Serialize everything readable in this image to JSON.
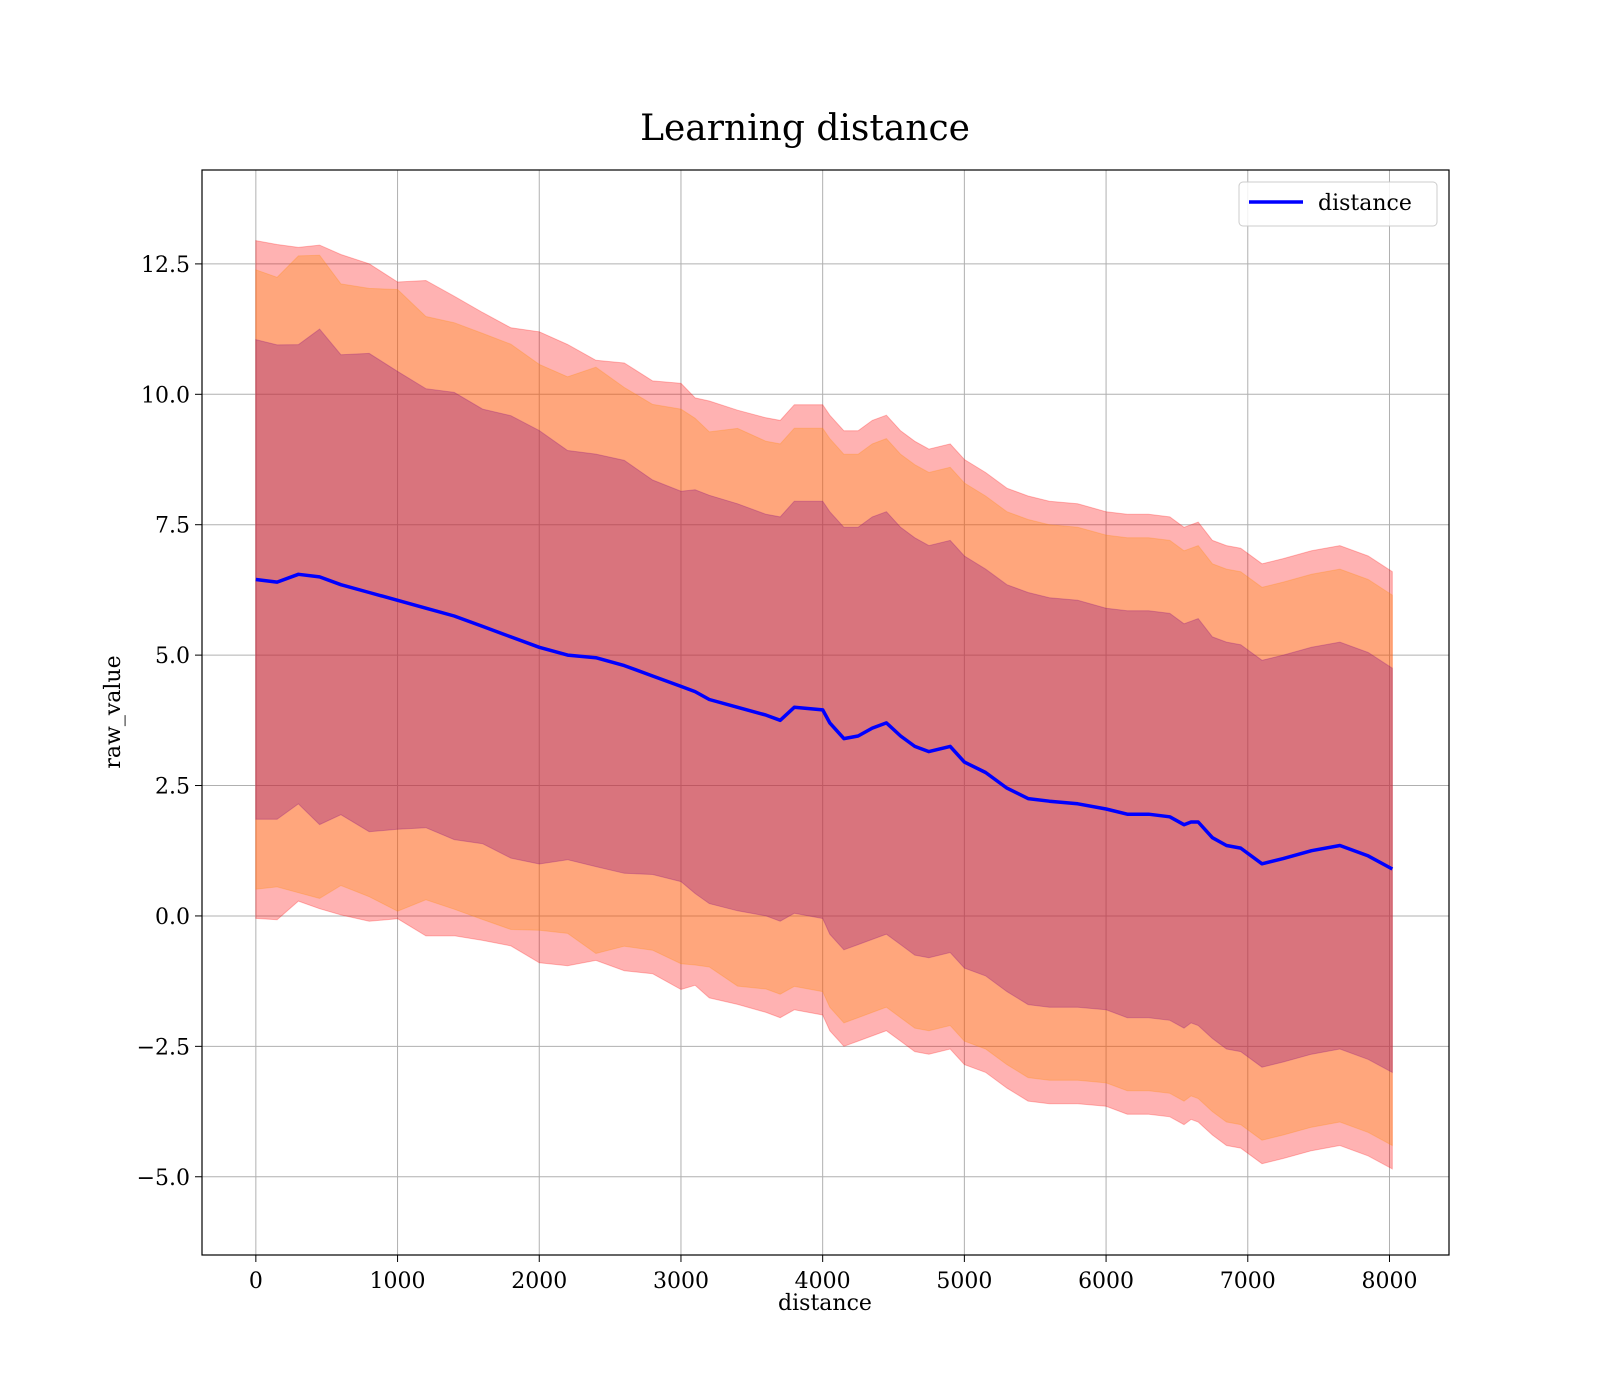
{
  "chart_data": {
    "type": "line",
    "title": "Learning distance",
    "xlabel": "distance",
    "ylabel": "raw_value",
    "xlim": [
      -380,
      8420
    ],
    "ylim": [
      -6.5,
      14.3
    ],
    "xticks": [
      0,
      1000,
      2000,
      3000,
      4000,
      5000,
      6000,
      7000,
      8000
    ],
    "xtick_labels": [
      "0",
      "1000",
      "2000",
      "3000",
      "4000",
      "5000",
      "6000",
      "7000",
      "8000"
    ],
    "yticks": [
      -5.0,
      -2.5,
      0.0,
      2.5,
      5.0,
      7.5,
      10.0,
      12.5
    ],
    "ytick_labels": [
      "−5.0",
      "−2.5",
      "0.0",
      "2.5",
      "5.0",
      "7.5",
      "10.0",
      "12.5"
    ],
    "grid": true,
    "legend": {
      "placement": "top-right",
      "entries": [
        "distance"
      ]
    },
    "series": [
      {
        "name": "distance",
        "color": "#0000ff",
        "x": [
          0,
          150,
          300,
          450,
          600,
          800,
          1000,
          1200,
          1400,
          1600,
          1800,
          2000,
          2200,
          2400,
          2600,
          2800,
          3000,
          3100,
          3200,
          3400,
          3600,
          3700,
          3800,
          4000,
          4050,
          4150,
          4250,
          4350,
          4450,
          4550,
          4650,
          4750,
          4900,
          5000,
          5150,
          5300,
          5450,
          5600,
          5800,
          6000,
          6150,
          6300,
          6450,
          6550,
          6600,
          6650,
          6750,
          6850,
          6950,
          7100,
          7250,
          7450,
          7650,
          7850,
          8020
        ],
        "y": [
          6.45,
          6.4,
          6.55,
          6.5,
          6.35,
          6.2,
          6.05,
          5.9,
          5.75,
          5.55,
          5.35,
          5.15,
          5.0,
          4.95,
          4.8,
          4.6,
          4.4,
          4.3,
          4.15,
          4.0,
          3.85,
          3.75,
          4.0,
          3.95,
          3.7,
          3.4,
          3.45,
          3.6,
          3.7,
          3.45,
          3.25,
          3.15,
          3.25,
          2.95,
          2.75,
          2.45,
          2.25,
          2.2,
          2.15,
          2.05,
          1.95,
          1.95,
          1.9,
          1.75,
          1.8,
          1.8,
          1.5,
          1.35,
          1.3,
          1.0,
          1.1,
          1.25,
          1.35,
          1.15,
          0.9
        ]
      }
    ],
    "bands": [
      {
        "color": "#ff0000",
        "opacity": 0.3,
        "upper": [
          12.95,
          12.85,
          12.95,
          12.95,
          12.7,
          12.5,
          12.3,
          12.05,
          11.85,
          11.6,
          11.35,
          11.1,
          10.9,
          10.8,
          10.6,
          10.35,
          10.15,
          10.05,
          9.85,
          9.7,
          9.55,
          9.5,
          9.8,
          9.8,
          9.6,
          9.3,
          9.3,
          9.5,
          9.6,
          9.3,
          9.1,
          8.95,
          9.05,
          8.75,
          8.5,
          8.2,
          8.05,
          7.95,
          7.9,
          7.75,
          7.7,
          7.7,
          7.65,
          7.45,
          7.5,
          7.55,
          7.2,
          7.1,
          7.05,
          6.75,
          6.85,
          7.0,
          7.1,
          6.9,
          6.6
        ],
        "lower": [
          -0.05,
          -0.05,
          0.15,
          0.05,
          0.0,
          -0.1,
          -0.2,
          -0.25,
          -0.35,
          -0.5,
          -0.65,
          -0.8,
          -0.9,
          -1.0,
          -1.05,
          -1.2,
          -1.35,
          -1.45,
          -1.55,
          -1.7,
          -1.85,
          -1.95,
          -1.8,
          -1.9,
          -2.2,
          -2.5,
          -2.4,
          -2.3,
          -2.2,
          -2.4,
          -2.6,
          -2.65,
          -2.55,
          -2.85,
          -3.0,
          -3.3,
          -3.55,
          -3.6,
          -3.6,
          -3.65,
          -3.8,
          -3.8,
          -3.85,
          -4.0,
          -3.9,
          -3.95,
          -4.2,
          -4.4,
          -4.45,
          -4.75,
          -4.65,
          -4.5,
          -4.4,
          -4.6,
          -4.85
        ]
      },
      {
        "color": "#ff8c00",
        "opacity": 0.3,
        "upper": [
          12.5,
          12.4,
          12.5,
          12.5,
          12.25,
          12.05,
          11.85,
          11.6,
          11.4,
          11.15,
          10.9,
          10.65,
          10.45,
          10.35,
          10.15,
          9.9,
          9.7,
          9.6,
          9.4,
          9.25,
          9.1,
          9.05,
          9.35,
          9.35,
          9.15,
          8.85,
          8.85,
          9.05,
          9.15,
          8.85,
          8.65,
          8.5,
          8.6,
          8.3,
          8.05,
          7.75,
          7.6,
          7.5,
          7.45,
          7.3,
          7.25,
          7.25,
          7.2,
          7.0,
          7.05,
          7.1,
          6.75,
          6.65,
          6.6,
          6.3,
          6.4,
          6.55,
          6.65,
          6.45,
          6.15
        ],
        "lower": [
          0.4,
          0.4,
          0.6,
          0.5,
          0.45,
          0.35,
          0.25,
          0.2,
          0.1,
          -0.05,
          -0.2,
          -0.35,
          -0.45,
          -0.55,
          -0.6,
          -0.75,
          -0.9,
          -1.0,
          -1.1,
          -1.25,
          -1.4,
          -1.5,
          -1.35,
          -1.45,
          -1.75,
          -2.05,
          -1.95,
          -1.85,
          -1.75,
          -1.95,
          -2.15,
          -2.2,
          -2.1,
          -2.4,
          -2.55,
          -2.85,
          -3.1,
          -3.15,
          -3.15,
          -3.2,
          -3.35,
          -3.35,
          -3.4,
          -3.55,
          -3.45,
          -3.5,
          -3.75,
          -3.95,
          -4.0,
          -4.3,
          -4.2,
          -4.05,
          -3.95,
          -4.15,
          -4.4
        ]
      },
      {
        "color": "#800080",
        "opacity": 0.3,
        "upper": [
          11.1,
          11.0,
          11.1,
          11.1,
          10.85,
          10.65,
          10.45,
          10.2,
          10.0,
          9.75,
          9.5,
          9.25,
          9.05,
          8.95,
          8.75,
          8.5,
          8.3,
          8.2,
          8.0,
          7.85,
          7.7,
          7.65,
          7.95,
          7.95,
          7.75,
          7.45,
          7.45,
          7.65,
          7.75,
          7.45,
          7.25,
          7.1,
          7.2,
          6.9,
          6.65,
          6.35,
          6.2,
          6.1,
          6.05,
          5.9,
          5.85,
          5.85,
          5.8,
          5.6,
          5.65,
          5.7,
          5.35,
          5.25,
          5.2,
          4.9,
          5.0,
          5.15,
          5.25,
          5.05,
          4.75
        ],
        "lower": [
          1.8,
          1.8,
          2.0,
          1.9,
          1.85,
          1.75,
          1.65,
          1.6,
          1.5,
          1.35,
          1.2,
          1.05,
          0.95,
          0.85,
          0.8,
          0.65,
          0.5,
          0.4,
          0.3,
          0.15,
          0.0,
          -0.1,
          0.05,
          -0.05,
          -0.35,
          -0.65,
          -0.55,
          -0.45,
          -0.35,
          -0.55,
          -0.75,
          -0.8,
          -0.7,
          -1.0,
          -1.15,
          -1.45,
          -1.7,
          -1.75,
          -1.75,
          -1.8,
          -1.95,
          -1.95,
          -2.0,
          -2.15,
          -2.05,
          -2.1,
          -2.35,
          -2.55,
          -2.6,
          -2.9,
          -2.8,
          -2.65,
          -2.55,
          -2.75,
          -3.0
        ]
      }
    ]
  }
}
